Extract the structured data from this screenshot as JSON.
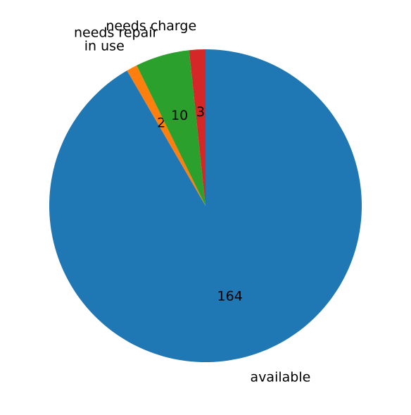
{
  "chart_data": {
    "type": "pie",
    "title": "",
    "start_angle_deg": 90,
    "direction": "clockwise",
    "slices": [
      {
        "label": "available",
        "value": 164,
        "value_label": "164",
        "color": "#1f77b4"
      },
      {
        "label": "in use",
        "value": 2,
        "value_label": "2",
        "color": "#ff7f0e"
      },
      {
        "label": "needs repair",
        "value": 10,
        "value_label": "10",
        "color": "#2ca02c"
      },
      {
        "label": "needs charge",
        "value": 3,
        "value_label": "3",
        "color": "#d62728"
      }
    ]
  }
}
